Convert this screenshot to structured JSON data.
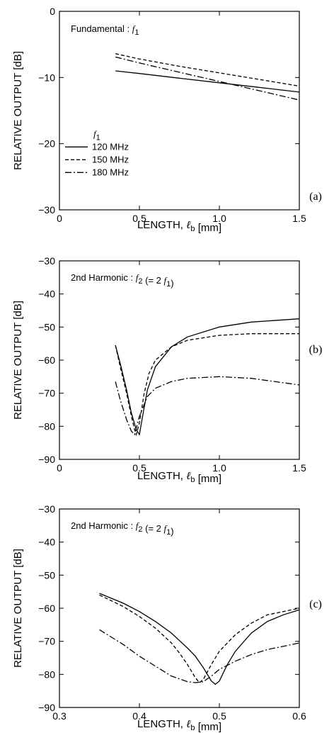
{
  "chart_data": [
    {
      "panel": "(a)",
      "type": "line",
      "annotation": "Fundamental : f1",
      "xlabel": "LENGTH, ℓb [mm]",
      "ylabel": "RELATIVE OUTPUT [dB]",
      "xlim": [
        0,
        1.5
      ],
      "ylim": [
        -30,
        0
      ],
      "xticks": [
        0,
        0.5,
        1.0,
        1.5
      ],
      "xtick_labels": [
        "0",
        "0.5",
        "1.0",
        "1.5"
      ],
      "yticks": [
        0,
        -10,
        -20,
        -30
      ],
      "ytick_labels": [
        "0",
        "−10",
        "−20",
        "−30"
      ],
      "legend": {
        "title": "f1",
        "entries": [
          "120 MHz",
          "150 MHz",
          "180 MHz"
        ]
      },
      "series": [
        {
          "name": "120 MHz",
          "style": "solid",
          "x": [
            0.35,
            0.5,
            0.75,
            1.0,
            1.25,
            1.5
          ],
          "y": [
            -9.0,
            -9.4,
            -10.1,
            -10.8,
            -11.5,
            -12.2
          ]
        },
        {
          "name": "150 MHz",
          "style": "dashed",
          "x": [
            0.35,
            0.5,
            0.75,
            1.0,
            1.25,
            1.5
          ],
          "y": [
            -6.4,
            -7.2,
            -8.3,
            -9.3,
            -10.3,
            -11.3
          ]
        },
        {
          "name": "180 MHz",
          "style": "dashdot",
          "x": [
            0.35,
            0.5,
            0.75,
            1.0,
            1.25,
            1.5
          ],
          "y": [
            -6.9,
            -7.8,
            -9.2,
            -10.6,
            -12.0,
            -13.4
          ]
        }
      ]
    },
    {
      "panel": "(b)",
      "type": "line",
      "annotation": "2nd Harmonic : f2 (= 2 f1)",
      "xlabel": "LENGTH, ℓb [mm]",
      "ylabel": "RELATIVE OUTPUT [dB]",
      "xlim": [
        0,
        1.5
      ],
      "ylim": [
        -90,
        -30
      ],
      "xticks": [
        0,
        0.5,
        1.0,
        1.5
      ],
      "xtick_labels": [
        "0",
        "0.5",
        "1.0",
        "1.5"
      ],
      "yticks": [
        -30,
        -40,
        -50,
        -60,
        -70,
        -80,
        -90
      ],
      "ytick_labels": [
        "−30",
        "−40",
        "−50",
        "−60",
        "−70",
        "−80",
        "−90"
      ],
      "series": [
        {
          "name": "120 MHz",
          "style": "solid",
          "x": [
            0.35,
            0.38,
            0.42,
            0.45,
            0.48,
            0.5,
            0.52,
            0.55,
            0.6,
            0.7,
            0.8,
            1.0,
            1.2,
            1.5
          ],
          "y": [
            -55.5,
            -61,
            -69,
            -76,
            -81,
            -82.5,
            -77,
            -69,
            -62,
            -56,
            -53,
            -50,
            -48.5,
            -47.5
          ]
        },
        {
          "name": "150 MHz",
          "style": "dashed",
          "x": [
            0.35,
            0.38,
            0.42,
            0.45,
            0.47,
            0.48,
            0.5,
            0.53,
            0.56,
            0.6,
            0.7,
            0.8,
            1.0,
            1.2,
            1.5
          ],
          "y": [
            -55.5,
            -62,
            -70,
            -77,
            -81,
            -82.5,
            -79,
            -70,
            -64,
            -60,
            -56,
            -54,
            -52.5,
            -52,
            -52
          ]
        },
        {
          "name": "180 MHz",
          "style": "dashdot",
          "x": [
            0.35,
            0.38,
            0.42,
            0.45,
            0.47,
            0.5,
            0.55,
            0.6,
            0.7,
            0.8,
            1.0,
            1.2,
            1.5
          ],
          "y": [
            -66.5,
            -72,
            -78,
            -81.5,
            -82.5,
            -77,
            -71,
            -68.5,
            -66.5,
            -65.5,
            -65,
            -65.5,
            -67.5
          ]
        }
      ]
    },
    {
      "panel": "(c)",
      "type": "line",
      "annotation": "2nd Harmonic : f2 (= 2 f1)",
      "xlabel": "LENGTH, ℓb [mm]",
      "ylabel": "RELATIVE OUTPUT [dB]",
      "xlim": [
        0.3,
        0.6
      ],
      "ylim": [
        -90,
        -30
      ],
      "xticks": [
        0.3,
        0.4,
        0.5,
        0.6
      ],
      "xtick_labels": [
        "0.3",
        "0.4",
        "0.5",
        "0.6"
      ],
      "yticks": [
        -30,
        -40,
        -50,
        -60,
        -70,
        -80,
        -90
      ],
      "ytick_labels": [
        "−30",
        "−40",
        "−50",
        "−60",
        "−70",
        "−80",
        "−90"
      ],
      "series": [
        {
          "name": "120 MHz",
          "style": "solid",
          "x": [
            0.35,
            0.38,
            0.4,
            0.42,
            0.44,
            0.46,
            0.47,
            0.48,
            0.49,
            0.495,
            0.5,
            0.51,
            0.52,
            0.54,
            0.56,
            0.58,
            0.6
          ],
          "y": [
            -55.5,
            -58.5,
            -61,
            -64,
            -67.5,
            -72,
            -74.5,
            -78,
            -82,
            -83,
            -82,
            -77,
            -73,
            -67.5,
            -64,
            -62,
            -60.5
          ]
        },
        {
          "name": "150 MHz",
          "style": "dashed",
          "x": [
            0.35,
            0.38,
            0.4,
            0.42,
            0.44,
            0.45,
            0.46,
            0.47,
            0.475,
            0.48,
            0.49,
            0.5,
            0.52,
            0.54,
            0.56,
            0.58,
            0.6
          ],
          "y": [
            -56,
            -59.5,
            -62.5,
            -66,
            -70.5,
            -73.5,
            -77,
            -81,
            -82.5,
            -81.5,
            -77,
            -73,
            -68,
            -64.5,
            -62,
            -61,
            -60
          ]
        },
        {
          "name": "180 MHz",
          "style": "dashdot",
          "x": [
            0.35,
            0.38,
            0.4,
            0.42,
            0.44,
            0.46,
            0.47,
            0.48,
            0.49,
            0.5,
            0.52,
            0.54,
            0.56,
            0.58,
            0.6
          ],
          "y": [
            -66.5,
            -71,
            -74.5,
            -77.5,
            -80.5,
            -82.2,
            -82.5,
            -82.2,
            -80.5,
            -78.5,
            -76,
            -74,
            -72.5,
            -71.5,
            -70.5
          ]
        }
      ]
    }
  ]
}
